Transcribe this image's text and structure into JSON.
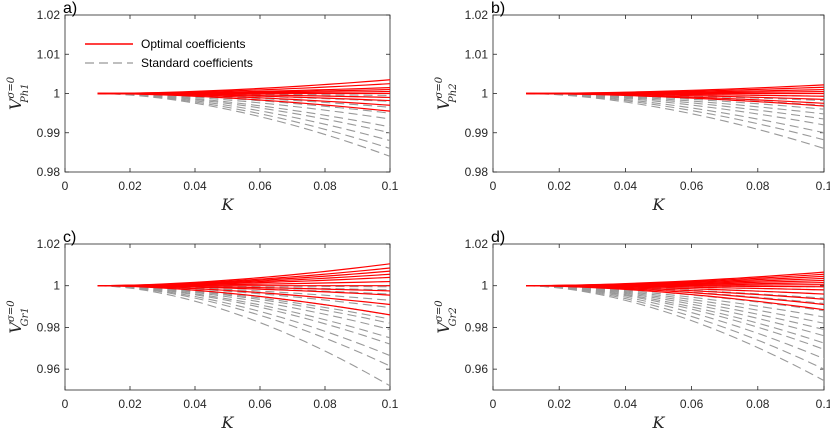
{
  "colors": {
    "optimal": "#ff0000",
    "standard": "#999999",
    "axis": "#262626"
  },
  "legend": {
    "optimal": "Optimal coefficients",
    "standard": "Standard coefficients"
  },
  "chart_data": [
    {
      "type": "line",
      "panel_label": "a)",
      "xlabel": "K",
      "ylabel_base": "V",
      "ylabel_sup": "σ=0",
      "ylabel_sub": "Ph1",
      "xlim": [
        0,
        0.1
      ],
      "ylim": [
        0.98,
        1.02
      ],
      "xticks": [
        "0",
        "0.02",
        "0.04",
        "0.06",
        "0.08",
        "0.1"
      ],
      "yticks": [
        "0.98",
        "0.99",
        "1",
        "1.01",
        "1.02"
      ],
      "x_start": 0.01,
      "x_end": 0.1,
      "legend_position": "top-left",
      "series": [
        {
          "name": "Optimal coefficients",
          "style": "solid",
          "end_values": [
            1.0035,
            1.0025,
            1.0015,
            1.001,
            1.0005,
            1.0,
            0.999,
            0.9982,
            0.997,
            0.9955
          ]
        },
        {
          "name": "Standard coefficients",
          "style": "dashed",
          "end_values": [
            1.0,
            0.9995,
            0.999,
            0.998,
            0.9965,
            0.995,
            0.9935,
            0.9915,
            0.99,
            0.988,
            0.986,
            0.984
          ]
        }
      ]
    },
    {
      "type": "line",
      "panel_label": "b)",
      "xlabel": "K",
      "ylabel_base": "V",
      "ylabel_sup": "σ=0",
      "ylabel_sub": "Ph2",
      "xlim": [
        0,
        0.1
      ],
      "ylim": [
        0.98,
        1.02
      ],
      "xticks": [
        "0",
        "0.02",
        "0.04",
        "0.06",
        "0.08",
        "0.1"
      ],
      "yticks": [
        "0.98",
        "0.99",
        "1",
        "1.01",
        "1.02"
      ],
      "x_start": 0.01,
      "x_end": 0.1,
      "series": [
        {
          "name": "Optimal coefficients",
          "style": "solid",
          "end_values": [
            1.0022,
            1.0016,
            1.001,
            1.0005,
            1.0,
            0.9993,
            0.9985,
            0.9975,
            0.9968
          ]
        },
        {
          "name": "Standard coefficients",
          "style": "dashed",
          "end_values": [
            1.0,
            0.9993,
            0.9982,
            0.997,
            0.996,
            0.9948,
            0.9935,
            0.992,
            0.99,
            0.9882,
            0.986
          ]
        }
      ]
    },
    {
      "type": "line",
      "panel_label": "c)",
      "xlabel": "K",
      "ylabel_base": "V",
      "ylabel_sup": "σ=0",
      "ylabel_sub": "Gr1",
      "xlim": [
        0,
        0.1
      ],
      "ylim": [
        0.95,
        1.02
      ],
      "xticks": [
        "0",
        "0.02",
        "0.04",
        "0.06",
        "0.08",
        "0.1"
      ],
      "yticks": [
        "0.96",
        "0.98",
        "1",
        "1.02"
      ],
      "x_start": 0.01,
      "x_end": 0.1,
      "series": [
        {
          "name": "Optimal coefficients",
          "style": "solid",
          "end_values": [
            1.0105,
            1.0085,
            1.007,
            1.0055,
            1.004,
            1.002,
            1.0,
            0.9975,
            0.9955,
            0.991,
            0.986
          ]
        },
        {
          "name": "Standard coefficients",
          "style": "dashed",
          "end_values": [
            0.9995,
            0.998,
            0.996,
            0.993,
            0.9895,
            0.986,
            0.984,
            0.982,
            0.979,
            0.975,
            0.972,
            0.9665,
            0.9615,
            0.952
          ]
        }
      ]
    },
    {
      "type": "line",
      "panel_label": "d)",
      "xlabel": "K",
      "ylabel_base": "V",
      "ylabel_sup": "σ=0",
      "ylabel_sub": "Gr2",
      "xlim": [
        0,
        0.1
      ],
      "ylim": [
        0.95,
        1.02
      ],
      "xticks": [
        "0",
        "0.02",
        "0.04",
        "0.06",
        "0.08",
        "0.1"
      ],
      "yticks": [
        "0.96",
        "0.98",
        "1",
        "1.02"
      ],
      "x_start": 0.01,
      "x_end": 0.1,
      "series": [
        {
          "name": "Optimal coefficients",
          "style": "solid",
          "end_values": [
            1.0065,
            1.0055,
            1.0045,
            1.0035,
            1.0025,
            1.0015,
            1.0005,
            0.9995,
            0.998,
            0.996,
            0.9935,
            0.991,
            0.9885
          ]
        },
        {
          "name": "Standard coefficients",
          "style": "dashed",
          "end_values": [
            0.9995,
            0.998,
            0.996,
            0.994,
            0.9915,
            0.988,
            0.985,
            0.982,
            0.979,
            0.976,
            0.9725,
            0.9695,
            0.965,
            0.96,
            0.9545
          ]
        }
      ]
    }
  ]
}
